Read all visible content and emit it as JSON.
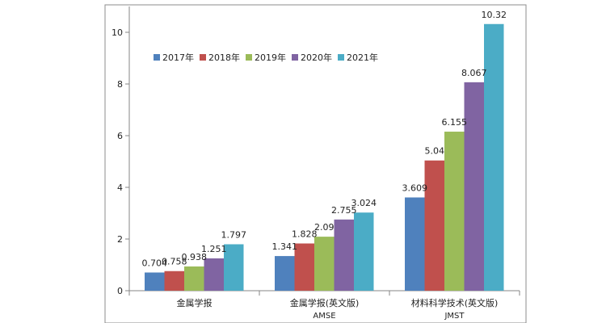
{
  "chart_data": {
    "type": "bar",
    "title": "",
    "xlabel": "",
    "ylabel": "",
    "ylim": [
      0,
      11
    ],
    "yticks": [
      0,
      2,
      4,
      6,
      8,
      10
    ],
    "grid": false,
    "legend_position": "top-left",
    "categories": [
      "金属学报",
      "金属学报(英文版)",
      "材料科学技术(英文版)"
    ],
    "category_sublabels": [
      "",
      "AMSE",
      "JMST"
    ],
    "series": [
      {
        "name": "2017年",
        "color": "#4F81BD",
        "values": [
          0.704,
          1.341,
          3.609
        ],
        "labels": [
          "0.704",
          "1.341",
          "3.609"
        ]
      },
      {
        "name": "2018年",
        "color": "#C0504D",
        "values": [
          0.758,
          1.828,
          5.04
        ],
        "labels": [
          "0.758",
          "1.828",
          "5.04"
        ]
      },
      {
        "name": "2019年",
        "color": "#9BBB59",
        "values": [
          0.938,
          2.09,
          6.155
        ],
        "labels": [
          "0.938",
          "2.09",
          "6.155"
        ]
      },
      {
        "name": "2020年",
        "color": "#8064A2",
        "values": [
          1.251,
          2.755,
          8.067
        ],
        "labels": [
          "1.251",
          "2.755",
          "8.067"
        ]
      },
      {
        "name": "2021年",
        "color": "#4BACC6",
        "values": [
          1.797,
          3.024,
          10.32
        ],
        "labels": [
          "1.797",
          "3.024",
          "10.32"
        ]
      }
    ]
  }
}
